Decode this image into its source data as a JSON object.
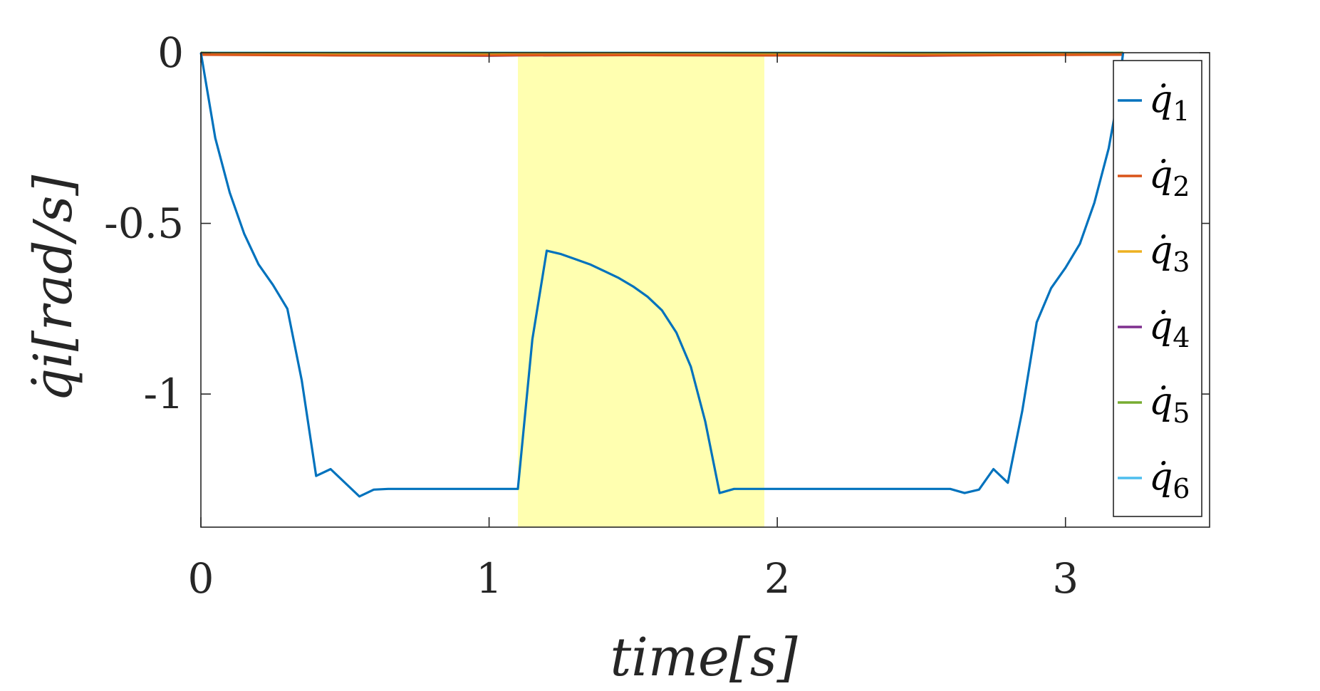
{
  "chart_data": {
    "type": "line",
    "xlabel": "time[s]",
    "ylabel": "q̇i[rad/s]",
    "xlim": [
      0,
      3.5
    ],
    "ylim": [
      -1.39,
      0
    ],
    "xticks": [
      0,
      1,
      2,
      3
    ],
    "xtick_labels": [
      "0",
      "1",
      "2",
      "3"
    ],
    "yticks": [
      0,
      -0.5,
      -1
    ],
    "ytick_labels": [
      "0",
      "-0.5",
      "-1"
    ],
    "grid": false,
    "legend_position": "right",
    "highlight_band": {
      "x_start": 1.1,
      "x_end": 1.955,
      "color": "#ffffb0"
    },
    "colors": [
      "#0072bd",
      "#d95319",
      "#edb120",
      "#7e2f8e",
      "#77ac30",
      "#4dbeee"
    ],
    "legend": [
      {
        "base": "q̇",
        "sub": "1"
      },
      {
        "base": "q̇",
        "sub": "2"
      },
      {
        "base": "q̇",
        "sub": "3"
      },
      {
        "base": "q̇",
        "sub": "4"
      },
      {
        "base": "q̇",
        "sub": "5"
      },
      {
        "base": "q̇",
        "sub": "6"
      }
    ],
    "series": [
      {
        "x": [
          0,
          0.05,
          0.1,
          0.15,
          0.2,
          0.25,
          0.3,
          0.35,
          0.4,
          0.45,
          0.55,
          0.6,
          0.65,
          0.7,
          0.8,
          0.9,
          1.0,
          1.1,
          1.15,
          1.2,
          1.25,
          1.3,
          1.35,
          1.4,
          1.45,
          1.5,
          1.55,
          1.6,
          1.65,
          1.7,
          1.75,
          1.8,
          1.85,
          1.9,
          1.955,
          2.0,
          2.05,
          2.2,
          2.4,
          2.6,
          2.65,
          2.7,
          2.75,
          2.8,
          2.85,
          2.9,
          2.95,
          3.0,
          3.05,
          3.1,
          3.15,
          3.18,
          3.2
        ],
        "y": [
          0,
          -0.25,
          -0.41,
          -0.53,
          -0.62,
          -0.68,
          -0.75,
          -0.96,
          -1.24,
          -1.22,
          -1.3,
          -1.28,
          -1.278,
          -1.278,
          -1.278,
          -1.278,
          -1.278,
          -1.278,
          -0.84,
          -0.58,
          -0.59,
          -0.605,
          -0.62,
          -0.64,
          -0.66,
          -0.685,
          -0.715,
          -0.755,
          -0.82,
          -0.92,
          -1.08,
          -1.29,
          -1.278,
          -1.278,
          -1.278,
          -1.278,
          -1.278,
          -1.278,
          -1.278,
          -1.278,
          -1.29,
          -1.28,
          -1.22,
          -1.26,
          -1.05,
          -0.79,
          -0.69,
          -0.63,
          -0.56,
          -0.44,
          -0.28,
          -0.14,
          0
        ]
      },
      {
        "x": [
          0,
          0.5,
          1.0,
          1.1,
          1.5,
          1.955,
          2.5,
          3.2
        ],
        "y": [
          -0.006,
          -0.008,
          -0.008,
          -0.007,
          -0.007,
          -0.008,
          -0.008,
          -0.006
        ]
      },
      {
        "x": [
          0,
          0.5,
          1.0,
          1.1,
          1.5,
          1.955,
          2.5,
          3.2
        ],
        "y": [
          -0.004,
          -0.006,
          -0.006,
          -0.005,
          -0.005,
          -0.006,
          -0.006,
          -0.004
        ]
      },
      {
        "x": [
          0,
          0.5,
          1.0,
          1.1,
          1.5,
          1.955,
          2.5,
          3.2
        ],
        "y": [
          -0.004,
          -0.008,
          -0.009,
          -0.008,
          -0.007,
          -0.008,
          -0.009,
          -0.004
        ]
      },
      {
        "x": [
          0,
          0.05,
          3.15,
          3.2
        ],
        "y": [
          0,
          -0.001,
          -0.001,
          0
        ]
      },
      {
        "x": [
          0,
          0.05,
          3.15,
          3.2
        ],
        "y": [
          0,
          0,
          0,
          0
        ]
      }
    ]
  }
}
